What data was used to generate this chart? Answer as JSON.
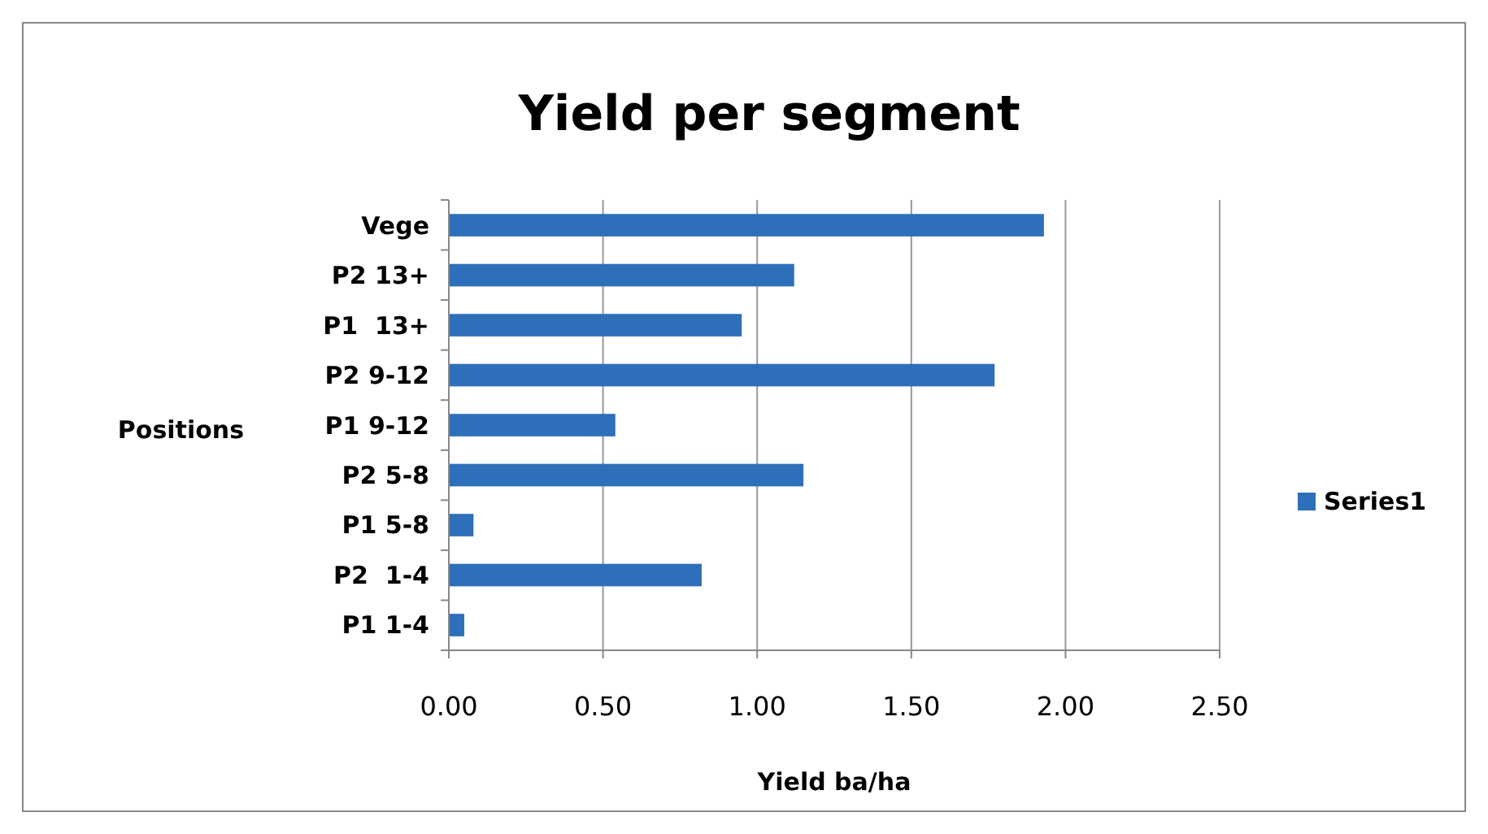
{
  "chart_data": {
    "type": "bar",
    "orientation": "horizontal",
    "title": "Yield per segment",
    "xlabel": "Yield ba/ha",
    "ylabel": "Positions",
    "categories": [
      "Vege",
      "P2 13+",
      "P1  13+",
      "P2 9-12",
      "P1 9-12",
      "P2 5-8",
      "P1 5-8",
      "P2  1-4",
      "P1 1-4"
    ],
    "series": [
      {
        "name": "Series1",
        "color": "#2e6fba",
        "values": [
          1.93,
          1.12,
          0.95,
          1.77,
          0.54,
          1.15,
          0.08,
          0.82,
          0.05
        ]
      }
    ],
    "xlim": [
      0,
      2.5
    ],
    "xticks": [
      {
        "value": 0,
        "label": "0.00"
      },
      {
        "value": 0.5,
        "label": "0.50"
      },
      {
        "value": 1,
        "label": "1.00"
      },
      {
        "value": 1.5,
        "label": "1.50"
      },
      {
        "value": 2,
        "label": "2.00"
      },
      {
        "value": 2.5,
        "label": "2.50"
      }
    ],
    "grid": "x",
    "legend": "right"
  }
}
